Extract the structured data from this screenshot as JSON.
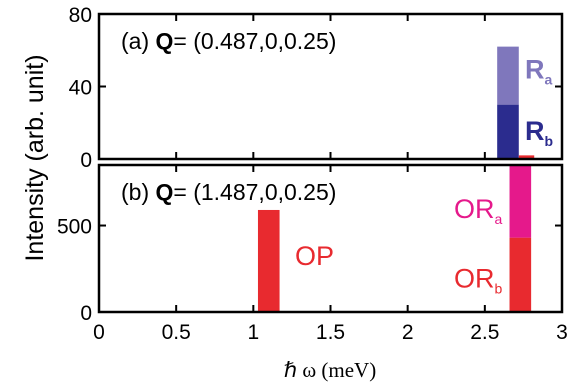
{
  "chart_data": {
    "type": "bar",
    "ylabel": "Intensity (arb. unit)",
    "xlabel": "ℏ ω (meV)",
    "xlim": [
      0,
      3
    ],
    "x_ticks": [
      "0",
      "0.5",
      "1",
      "1.5",
      "2",
      "2.5",
      "3"
    ],
    "panels": [
      {
        "title_prefix": "(a) ",
        "title_bold": "Q",
        "title_suffix": "= (0.487,0,0.25)",
        "ylim": [
          0,
          80
        ],
        "y_ticks": [
          "0",
          "40",
          "80"
        ],
        "bars": [
          {
            "name": "R",
            "sub": "b",
            "x": 2.65,
            "width": 0.14,
            "bottom": 0,
            "top": 30,
            "color": "#2b2c8e"
          },
          {
            "name": "R",
            "sub": "a",
            "x": 2.65,
            "width": 0.14,
            "bottom": 30,
            "top": 62,
            "color": "#7f77bc"
          },
          {
            "name": "",
            "sub": "",
            "x": 2.77,
            "width": 0.1,
            "bottom": 0,
            "top": 2,
            "color": "#e82a2f"
          }
        ],
        "labels": [
          {
            "text": "R",
            "sub": "a",
            "x": 2.76,
            "y": 50,
            "color": "#7f77bc"
          },
          {
            "text": "R",
            "sub": "b",
            "x": 2.76,
            "y": 16,
            "color": "#2b2c8e"
          }
        ]
      },
      {
        "title_prefix": "(b) ",
        "title_bold": "Q",
        "title_suffix": "= (1.487,0,0.25)",
        "ylim": [
          0,
          850
        ],
        "y_ticks": [
          "0",
          "500"
        ],
        "bars": [
          {
            "name": "OP",
            "sub": "",
            "x": 1.1,
            "width": 0.14,
            "bottom": 0,
            "top": 590,
            "color": "#e82a2f"
          },
          {
            "name": "OR",
            "sub": "b",
            "x": 2.73,
            "width": 0.14,
            "bottom": 0,
            "top": 430,
            "color": "#e82a2f"
          },
          {
            "name": "OR",
            "sub": "a",
            "x": 2.73,
            "width": 0.14,
            "bottom": 430,
            "top": 850,
            "color": "#e5198b"
          }
        ],
        "labels": [
          {
            "text": "OP",
            "sub": "",
            "x": 1.27,
            "y": 330,
            "color": "#e82a2f"
          },
          {
            "text": "OR",
            "sub": "a",
            "x": 2.3,
            "y": 600,
            "color": "#e5198b"
          },
          {
            "text": "OR",
            "sub": "b",
            "x": 2.3,
            "y": 200,
            "color": "#e82a2f"
          }
        ]
      }
    ]
  }
}
